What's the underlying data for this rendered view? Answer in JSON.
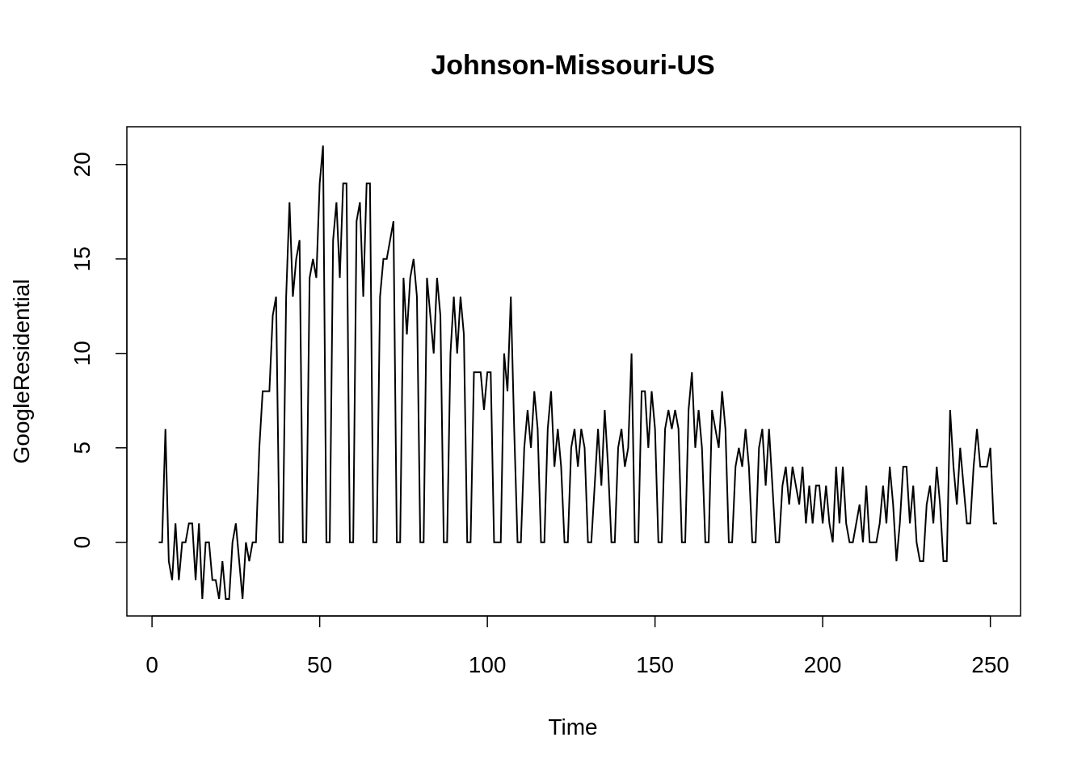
{
  "chart_data": {
    "type": "line",
    "title": "Johnson-Missouri-US",
    "xlabel": "Time",
    "ylabel": "GoogleResidential",
    "xlim": [
      -7.5,
      259
    ],
    "ylim": [
      -3.9,
      22
    ],
    "x_ticks": [
      0,
      50,
      100,
      150,
      200,
      250
    ],
    "y_ticks": [
      0,
      5,
      10,
      15,
      20
    ],
    "grid": false,
    "legend": "none",
    "line_color": "#000000",
    "series": [
      {
        "x_start": 2,
        "values": [
          0,
          0,
          6,
          -1,
          -2,
          1,
          -2,
          0,
          0,
          1,
          1,
          -2,
          1,
          -3,
          0,
          0,
          -2,
          -2,
          -3,
          -1,
          -3,
          -3,
          0,
          1,
          -1,
          -3,
          0,
          -1,
          0,
          0,
          5,
          8,
          8,
          8,
          12,
          13,
          0,
          0,
          13,
          18,
          13,
          15,
          16,
          0,
          0,
          14,
          15,
          14,
          19,
          21,
          0,
          0,
          16,
          18,
          14,
          19,
          19,
          0,
          0,
          17,
          18,
          13,
          19,
          19,
          0,
          0,
          13,
          15,
          15,
          16,
          17,
          0,
          0,
          14,
          11,
          14,
          15,
          13,
          0,
          0,
          14,
          12,
          10,
          14,
          12,
          0,
          0,
          10,
          13,
          10,
          13,
          11,
          0,
          0,
          9,
          9,
          9,
          7,
          9,
          9,
          0,
          0,
          0,
          10,
          8,
          13,
          6,
          0,
          0,
          5,
          7,
          5,
          8,
          6,
          0,
          0,
          6,
          8,
          4,
          6,
          4,
          0,
          0,
          5,
          6,
          4,
          6,
          5,
          0,
          0,
          3,
          6,
          3,
          7,
          4,
          0,
          0,
          5,
          6,
          4,
          5,
          10,
          0,
          0,
          8,
          8,
          5,
          8,
          6,
          0,
          0,
          6,
          7,
          6,
          7,
          6,
          0,
          0,
          7,
          9,
          5,
          7,
          5,
          0,
          0,
          7,
          6,
          5,
          8,
          6,
          0,
          0,
          4,
          5,
          4,
          6,
          4,
          0,
          0,
          5,
          6,
          3,
          6,
          3,
          0,
          0,
          3,
          4,
          2,
          4,
          3,
          2,
          4,
          1,
          3,
          1,
          3,
          3,
          1,
          3,
          1,
          0,
          4,
          1,
          4,
          1,
          0,
          0,
          1,
          2,
          0,
          3,
          0,
          0,
          0,
          1,
          3,
          1,
          4,
          2,
          -1,
          1,
          4,
          4,
          1,
          3,
          0,
          -1,
          -1,
          2,
          3,
          1,
          4,
          2,
          -1,
          -1,
          7,
          4,
          2,
          5,
          3,
          1,
          1,
          4,
          6,
          4,
          4,
          4,
          5,
          1,
          1
        ]
      }
    ]
  }
}
